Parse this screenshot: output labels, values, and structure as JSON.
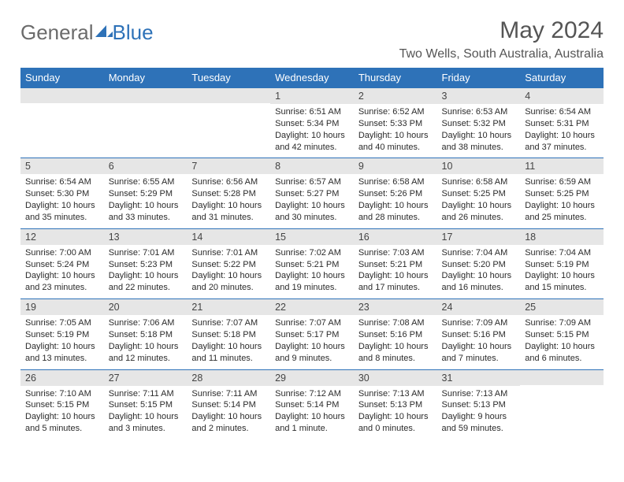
{
  "brand": {
    "part1": "General",
    "part2": "Blue"
  },
  "title": "May 2024",
  "location": "Two Wells, South Australia, Australia",
  "colors": {
    "header_blue": "#2e72b8",
    "day_label_bg": "#e6e6e6",
    "text_gray": "#555555",
    "body_text": "#2b2b2b"
  },
  "typography": {
    "title_fontsize": 30,
    "location_fontsize": 16,
    "weekday_fontsize": 13,
    "daynum_fontsize": 12.5,
    "detail_fontsize": 11
  },
  "weekdays": [
    "Sunday",
    "Monday",
    "Tuesday",
    "Wednesday",
    "Thursday",
    "Friday",
    "Saturday"
  ],
  "weeks": [
    [
      {
        "day": "",
        "sunrise": "",
        "sunset": "",
        "daylight1": "",
        "daylight2": ""
      },
      {
        "day": "",
        "sunrise": "",
        "sunset": "",
        "daylight1": "",
        "daylight2": ""
      },
      {
        "day": "",
        "sunrise": "",
        "sunset": "",
        "daylight1": "",
        "daylight2": ""
      },
      {
        "day": "1",
        "sunrise": "Sunrise: 6:51 AM",
        "sunset": "Sunset: 5:34 PM",
        "daylight1": "Daylight: 10 hours",
        "daylight2": "and 42 minutes."
      },
      {
        "day": "2",
        "sunrise": "Sunrise: 6:52 AM",
        "sunset": "Sunset: 5:33 PM",
        "daylight1": "Daylight: 10 hours",
        "daylight2": "and 40 minutes."
      },
      {
        "day": "3",
        "sunrise": "Sunrise: 6:53 AM",
        "sunset": "Sunset: 5:32 PM",
        "daylight1": "Daylight: 10 hours",
        "daylight2": "and 38 minutes."
      },
      {
        "day": "4",
        "sunrise": "Sunrise: 6:54 AM",
        "sunset": "Sunset: 5:31 PM",
        "daylight1": "Daylight: 10 hours",
        "daylight2": "and 37 minutes."
      }
    ],
    [
      {
        "day": "5",
        "sunrise": "Sunrise: 6:54 AM",
        "sunset": "Sunset: 5:30 PM",
        "daylight1": "Daylight: 10 hours",
        "daylight2": "and 35 minutes."
      },
      {
        "day": "6",
        "sunrise": "Sunrise: 6:55 AM",
        "sunset": "Sunset: 5:29 PM",
        "daylight1": "Daylight: 10 hours",
        "daylight2": "and 33 minutes."
      },
      {
        "day": "7",
        "sunrise": "Sunrise: 6:56 AM",
        "sunset": "Sunset: 5:28 PM",
        "daylight1": "Daylight: 10 hours",
        "daylight2": "and 31 minutes."
      },
      {
        "day": "8",
        "sunrise": "Sunrise: 6:57 AM",
        "sunset": "Sunset: 5:27 PM",
        "daylight1": "Daylight: 10 hours",
        "daylight2": "and 30 minutes."
      },
      {
        "day": "9",
        "sunrise": "Sunrise: 6:58 AM",
        "sunset": "Sunset: 5:26 PM",
        "daylight1": "Daylight: 10 hours",
        "daylight2": "and 28 minutes."
      },
      {
        "day": "10",
        "sunrise": "Sunrise: 6:58 AM",
        "sunset": "Sunset: 5:25 PM",
        "daylight1": "Daylight: 10 hours",
        "daylight2": "and 26 minutes."
      },
      {
        "day": "11",
        "sunrise": "Sunrise: 6:59 AM",
        "sunset": "Sunset: 5:25 PM",
        "daylight1": "Daylight: 10 hours",
        "daylight2": "and 25 minutes."
      }
    ],
    [
      {
        "day": "12",
        "sunrise": "Sunrise: 7:00 AM",
        "sunset": "Sunset: 5:24 PM",
        "daylight1": "Daylight: 10 hours",
        "daylight2": "and 23 minutes."
      },
      {
        "day": "13",
        "sunrise": "Sunrise: 7:01 AM",
        "sunset": "Sunset: 5:23 PM",
        "daylight1": "Daylight: 10 hours",
        "daylight2": "and 22 minutes."
      },
      {
        "day": "14",
        "sunrise": "Sunrise: 7:01 AM",
        "sunset": "Sunset: 5:22 PM",
        "daylight1": "Daylight: 10 hours",
        "daylight2": "and 20 minutes."
      },
      {
        "day": "15",
        "sunrise": "Sunrise: 7:02 AM",
        "sunset": "Sunset: 5:21 PM",
        "daylight1": "Daylight: 10 hours",
        "daylight2": "and 19 minutes."
      },
      {
        "day": "16",
        "sunrise": "Sunrise: 7:03 AM",
        "sunset": "Sunset: 5:21 PM",
        "daylight1": "Daylight: 10 hours",
        "daylight2": "and 17 minutes."
      },
      {
        "day": "17",
        "sunrise": "Sunrise: 7:04 AM",
        "sunset": "Sunset: 5:20 PM",
        "daylight1": "Daylight: 10 hours",
        "daylight2": "and 16 minutes."
      },
      {
        "day": "18",
        "sunrise": "Sunrise: 7:04 AM",
        "sunset": "Sunset: 5:19 PM",
        "daylight1": "Daylight: 10 hours",
        "daylight2": "and 15 minutes."
      }
    ],
    [
      {
        "day": "19",
        "sunrise": "Sunrise: 7:05 AM",
        "sunset": "Sunset: 5:19 PM",
        "daylight1": "Daylight: 10 hours",
        "daylight2": "and 13 minutes."
      },
      {
        "day": "20",
        "sunrise": "Sunrise: 7:06 AM",
        "sunset": "Sunset: 5:18 PM",
        "daylight1": "Daylight: 10 hours",
        "daylight2": "and 12 minutes."
      },
      {
        "day": "21",
        "sunrise": "Sunrise: 7:07 AM",
        "sunset": "Sunset: 5:18 PM",
        "daylight1": "Daylight: 10 hours",
        "daylight2": "and 11 minutes."
      },
      {
        "day": "22",
        "sunrise": "Sunrise: 7:07 AM",
        "sunset": "Sunset: 5:17 PM",
        "daylight1": "Daylight: 10 hours",
        "daylight2": "and 9 minutes."
      },
      {
        "day": "23",
        "sunrise": "Sunrise: 7:08 AM",
        "sunset": "Sunset: 5:16 PM",
        "daylight1": "Daylight: 10 hours",
        "daylight2": "and 8 minutes."
      },
      {
        "day": "24",
        "sunrise": "Sunrise: 7:09 AM",
        "sunset": "Sunset: 5:16 PM",
        "daylight1": "Daylight: 10 hours",
        "daylight2": "and 7 minutes."
      },
      {
        "day": "25",
        "sunrise": "Sunrise: 7:09 AM",
        "sunset": "Sunset: 5:15 PM",
        "daylight1": "Daylight: 10 hours",
        "daylight2": "and 6 minutes."
      }
    ],
    [
      {
        "day": "26",
        "sunrise": "Sunrise: 7:10 AM",
        "sunset": "Sunset: 5:15 PM",
        "daylight1": "Daylight: 10 hours",
        "daylight2": "and 5 minutes."
      },
      {
        "day": "27",
        "sunrise": "Sunrise: 7:11 AM",
        "sunset": "Sunset: 5:15 PM",
        "daylight1": "Daylight: 10 hours",
        "daylight2": "and 3 minutes."
      },
      {
        "day": "28",
        "sunrise": "Sunrise: 7:11 AM",
        "sunset": "Sunset: 5:14 PM",
        "daylight1": "Daylight: 10 hours",
        "daylight2": "and 2 minutes."
      },
      {
        "day": "29",
        "sunrise": "Sunrise: 7:12 AM",
        "sunset": "Sunset: 5:14 PM",
        "daylight1": "Daylight: 10 hours",
        "daylight2": "and 1 minute."
      },
      {
        "day": "30",
        "sunrise": "Sunrise: 7:13 AM",
        "sunset": "Sunset: 5:13 PM",
        "daylight1": "Daylight: 10 hours",
        "daylight2": "and 0 minutes."
      },
      {
        "day": "31",
        "sunrise": "Sunrise: 7:13 AM",
        "sunset": "Sunset: 5:13 PM",
        "daylight1": "Daylight: 9 hours",
        "daylight2": "and 59 minutes."
      },
      {
        "day": "",
        "sunrise": "",
        "sunset": "",
        "daylight1": "",
        "daylight2": ""
      }
    ]
  ]
}
